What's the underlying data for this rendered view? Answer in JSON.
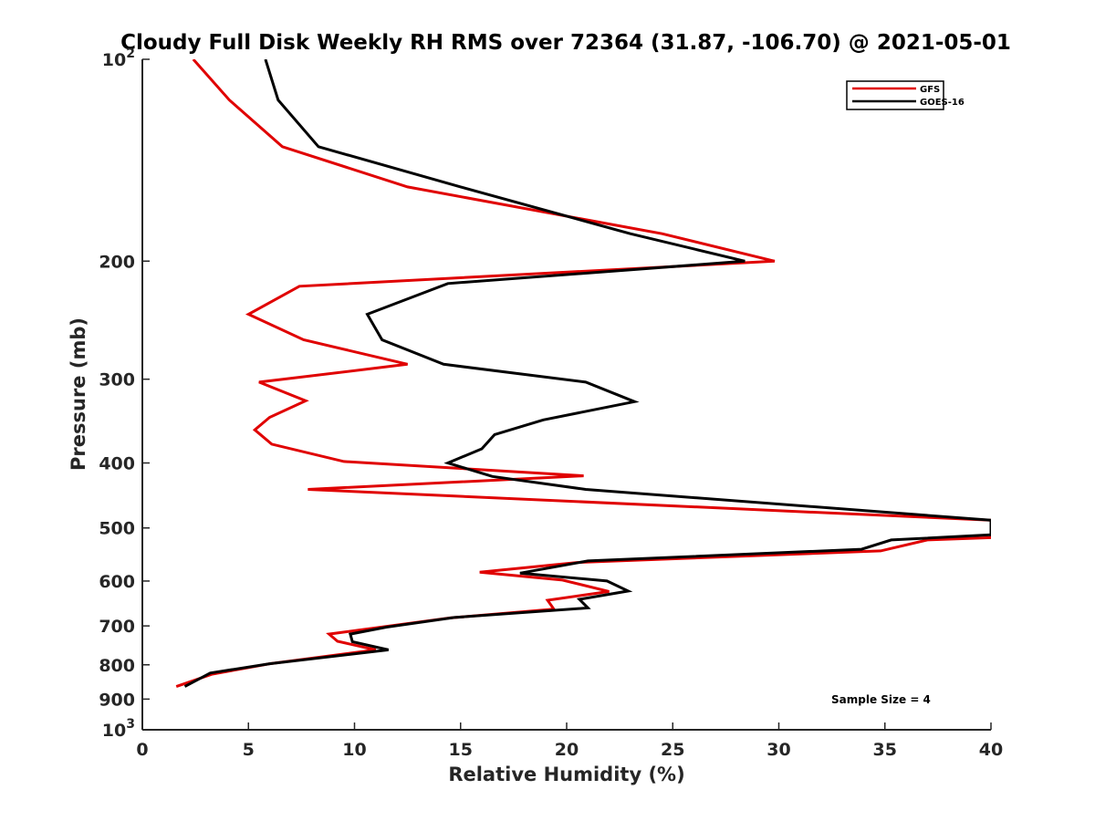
{
  "chart_data": {
    "type": "line",
    "title": "Cloudy Full Disk Weekly RH RMS over 72364 (31.87, -106.70) @ 2021-05-01",
    "xlabel": "Relative Humidity (%)",
    "ylabel": "Pressure (mb)",
    "xlim": [
      0,
      40
    ],
    "ylim": [
      100,
      1000
    ],
    "y_scale": "log",
    "y_reversed": true,
    "x_ticks": [
      "0",
      "5",
      "10",
      "15",
      "20",
      "25",
      "30",
      "35",
      "40"
    ],
    "y_ticks": [
      {
        "value": 100,
        "base": "10",
        "exp": "2"
      },
      {
        "value": 200,
        "label": "200"
      },
      {
        "value": 300,
        "label": "300"
      },
      {
        "value": 400,
        "label": "400"
      },
      {
        "value": 500,
        "label": "500"
      },
      {
        "value": 600,
        "label": "600"
      },
      {
        "value": 700,
        "label": "700"
      },
      {
        "value": 800,
        "label": "800"
      },
      {
        "value": 900,
        "label": "900"
      },
      {
        "value": 1000,
        "base": "10",
        "exp": "3"
      }
    ],
    "legend": {
      "position": "top-right",
      "entries": [
        "GFS",
        "GOES-16"
      ]
    },
    "annotation": "Sample Size = 4",
    "grid": false,
    "series": [
      {
        "name": "GFS",
        "color": "#e00000",
        "points": [
          [
            2.4,
            100
          ],
          [
            4.1,
            115
          ],
          [
            6.6,
            135
          ],
          [
            12.5,
            155
          ],
          [
            24.5,
            182
          ],
          [
            29.8,
            200
          ],
          [
            7.4,
            218
          ],
          [
            5.0,
            240
          ],
          [
            7.6,
            262
          ],
          [
            12.5,
            285
          ],
          [
            5.5,
            303
          ],
          [
            7.7,
            323
          ],
          [
            6.0,
            342
          ],
          [
            5.3,
            357
          ],
          [
            6.1,
            375
          ],
          [
            9.5,
            398
          ],
          [
            20.8,
            418
          ],
          [
            7.8,
            438
          ],
          [
            40.0,
            487
          ],
          [
            40.0,
            517
          ],
          [
            37.0,
            521
          ],
          [
            34.8,
            541
          ],
          [
            20.5,
            563
          ],
          [
            15.9,
            582
          ],
          [
            19.8,
            598
          ],
          [
            22.0,
            622
          ],
          [
            19.1,
            641
          ],
          [
            19.4,
            661
          ],
          [
            14.5,
            681
          ],
          [
            8.8,
            720
          ],
          [
            9.2,
            738
          ],
          [
            11.0,
            760
          ],
          [
            6.0,
            797
          ],
          [
            3.3,
            826
          ],
          [
            1.6,
            862
          ]
        ]
      },
      {
        "name": "GOES-16",
        "color": "#000000",
        "points": [
          [
            5.8,
            100
          ],
          [
            6.4,
            115
          ],
          [
            8.3,
            135
          ],
          [
            15.0,
            155
          ],
          [
            23.0,
            182
          ],
          [
            28.4,
            200
          ],
          [
            14.4,
            216
          ],
          [
            10.6,
            240
          ],
          [
            11.3,
            262
          ],
          [
            14.2,
            285
          ],
          [
            20.9,
            303
          ],
          [
            23.2,
            324
          ],
          [
            18.9,
            345
          ],
          [
            16.6,
            363
          ],
          [
            16.0,
            381
          ],
          [
            14.4,
            400
          ],
          [
            16.5,
            419
          ],
          [
            20.9,
            438
          ],
          [
            40.0,
            487
          ],
          [
            40.0,
            512
          ],
          [
            35.3,
            521
          ],
          [
            33.9,
            538
          ],
          [
            21.0,
            560
          ],
          [
            17.8,
            584
          ],
          [
            21.9,
            600
          ],
          [
            22.9,
            621
          ],
          [
            20.6,
            639
          ],
          [
            21.0,
            658
          ],
          [
            14.7,
            680
          ],
          [
            11.5,
            703
          ],
          [
            9.8,
            720
          ],
          [
            9.9,
            739
          ],
          [
            11.6,
            760
          ],
          [
            6.0,
            797
          ],
          [
            3.2,
            823
          ],
          [
            2.0,
            862
          ]
        ]
      }
    ]
  }
}
